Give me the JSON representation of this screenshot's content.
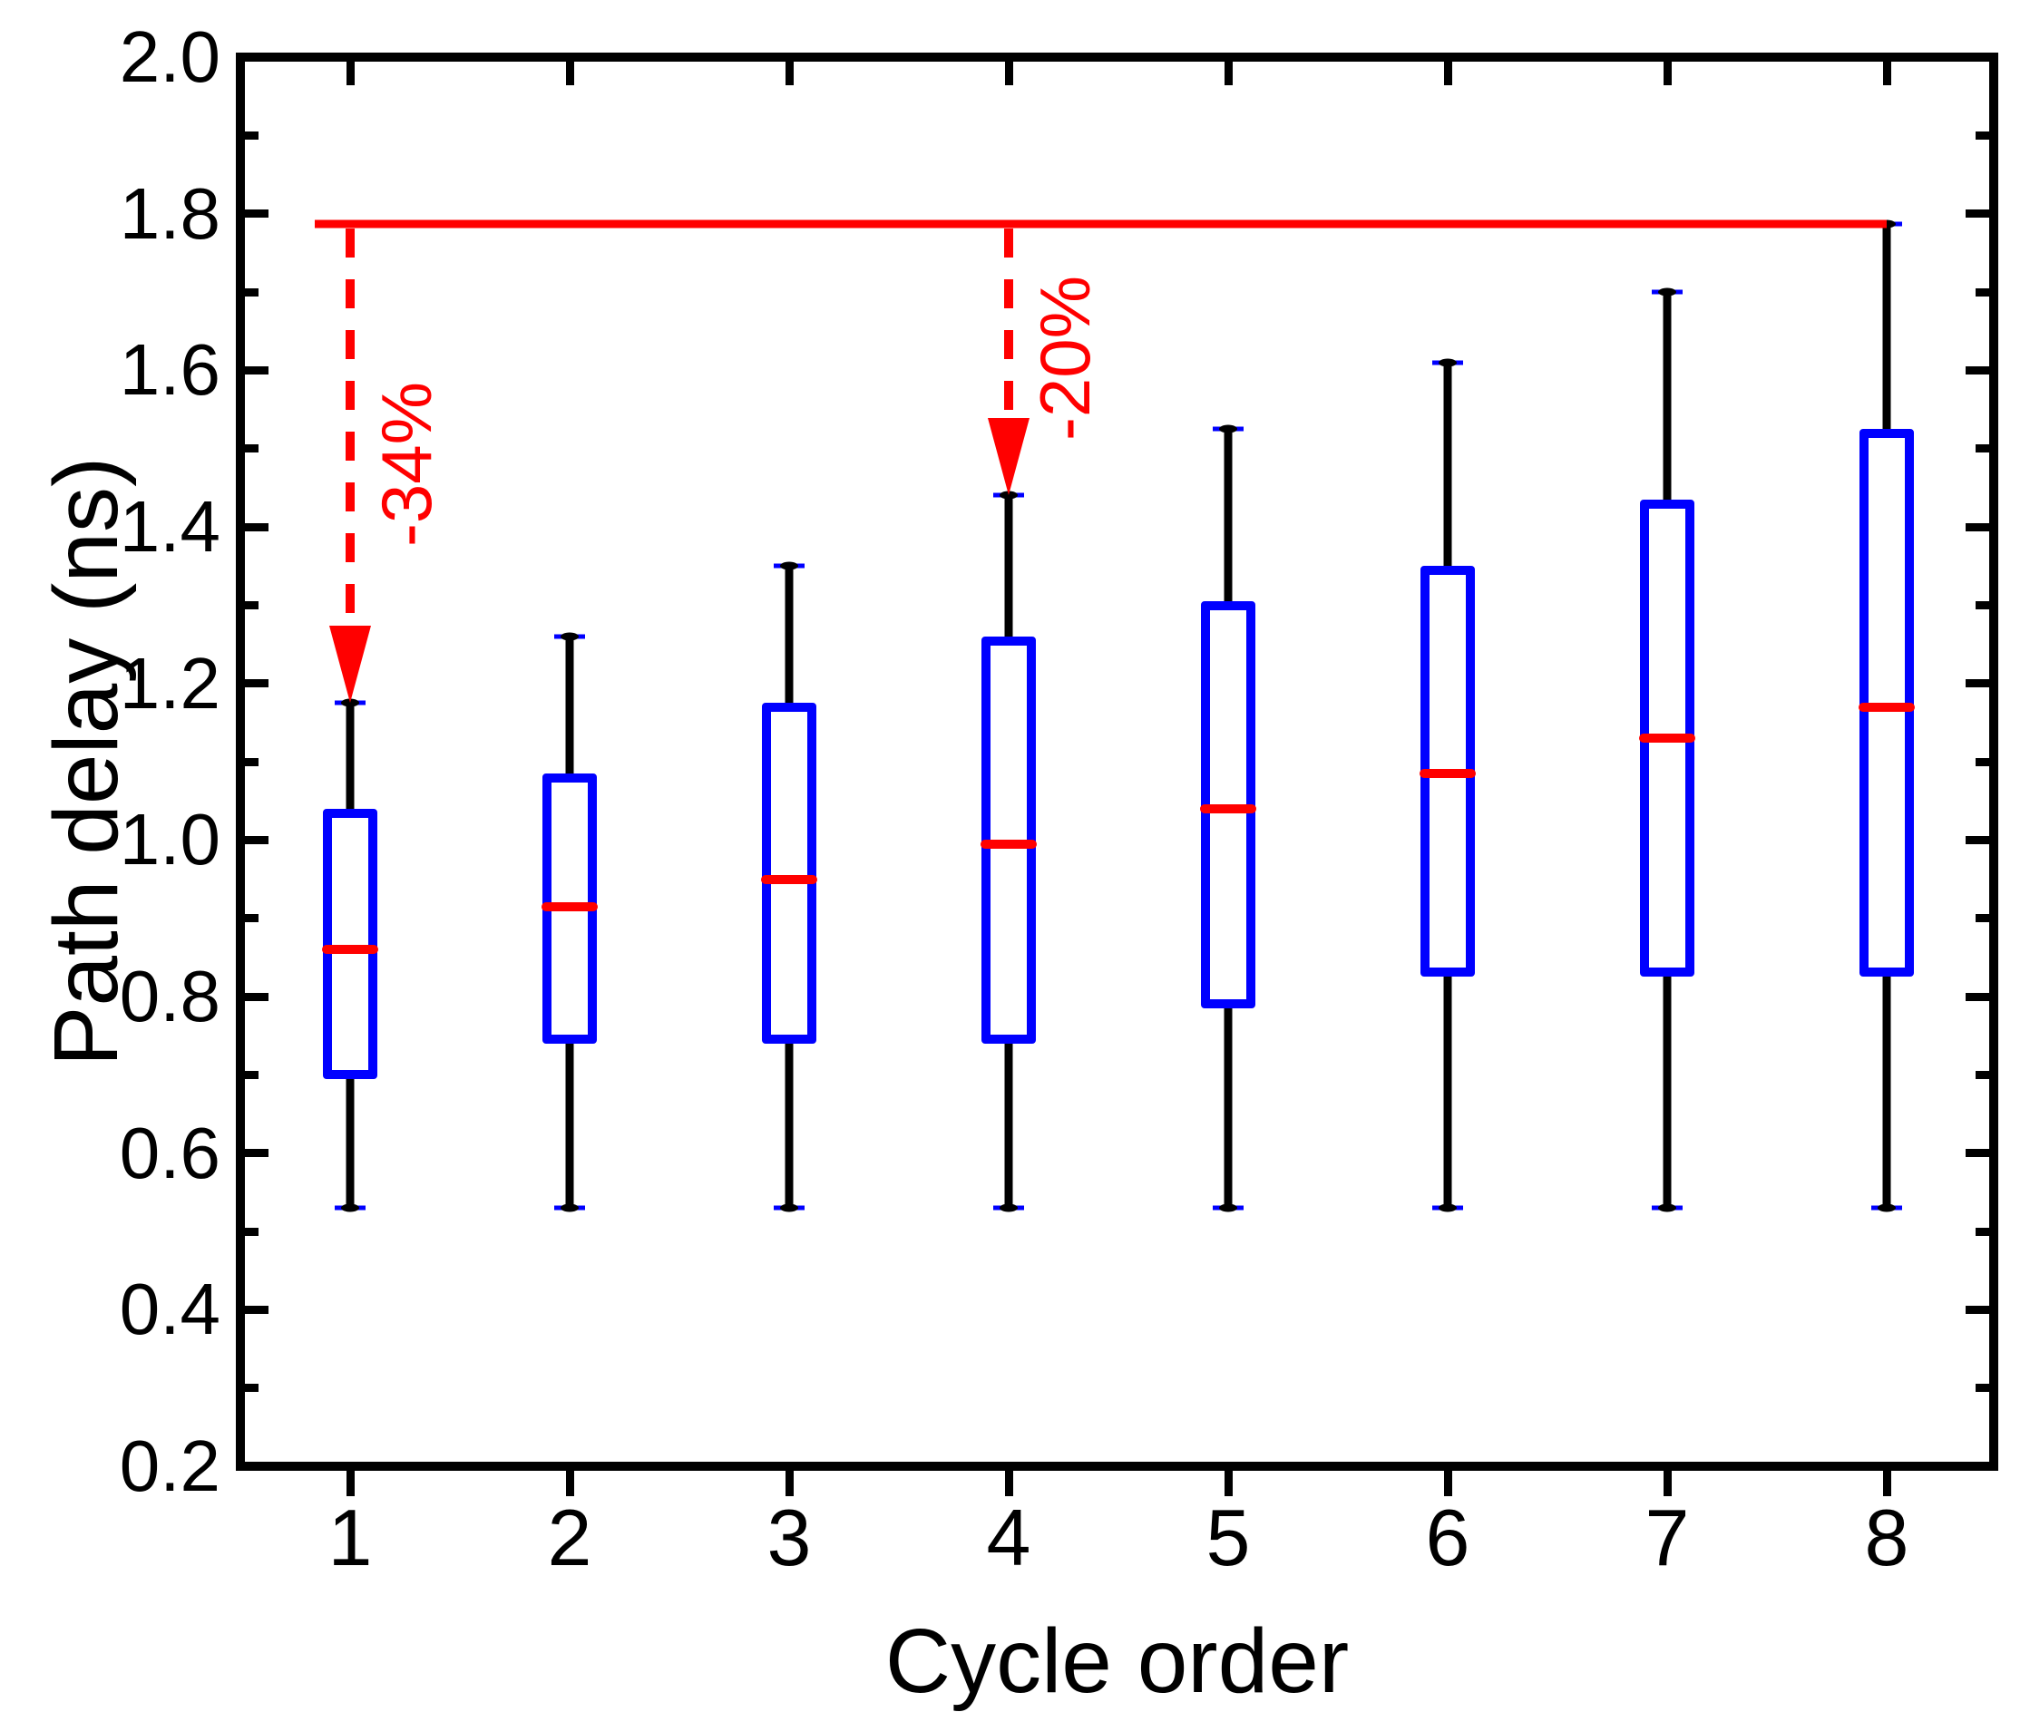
{
  "chart_data": {
    "type": "box",
    "title": "",
    "xlabel": "Cycle order",
    "ylabel": "Path delay (ns)",
    "x_categories": [
      "1",
      "2",
      "3",
      "4",
      "5",
      "6",
      "7",
      "8"
    ],
    "y_axis": {
      "min": 0.2,
      "max": 2.0,
      "major_step": 0.2,
      "minor_step": 0.1,
      "major_tick_labels": [
        "2.0",
        "1.8",
        "1.6",
        "1.4",
        "1.2",
        "1.0",
        "0.8",
        "0.6",
        "0.4",
        "0.2"
      ]
    },
    "grid": false,
    "legend": null,
    "boxes": [
      {
        "category": "1",
        "whisker_low": 0.53,
        "q1": 0.695,
        "median": 0.86,
        "q3": 1.04,
        "whisker_high": 1.175
      },
      {
        "category": "2",
        "whisker_low": 0.53,
        "q1": 0.74,
        "median": 0.915,
        "q3": 1.085,
        "whisker_high": 1.26
      },
      {
        "category": "3",
        "whisker_low": 0.53,
        "q1": 0.74,
        "median": 0.95,
        "q3": 1.175,
        "whisker_high": 1.35
      },
      {
        "category": "4",
        "whisker_low": 0.53,
        "q1": 0.74,
        "median": 0.995,
        "q3": 1.26,
        "whisker_high": 1.44
      },
      {
        "category": "5",
        "whisker_low": 0.53,
        "q1": 0.785,
        "median": 1.04,
        "q3": 1.305,
        "whisker_high": 1.525
      },
      {
        "category": "6",
        "whisker_low": 0.53,
        "q1": 0.825,
        "median": 1.085,
        "q3": 1.35,
        "whisker_high": 1.61
      },
      {
        "category": "7",
        "whisker_low": 0.53,
        "q1": 0.825,
        "median": 1.13,
        "q3": 1.435,
        "whisker_high": 1.7
      },
      {
        "category": "8",
        "whisker_low": 0.53,
        "q1": 0.825,
        "median": 1.17,
        "q3": 1.525,
        "whisker_high": 1.787
      }
    ],
    "reference_line": {
      "value": 1.787,
      "from_category": 0.84,
      "to_category": 8.0
    },
    "arrows": [
      {
        "category": 1,
        "from_value": 1.787,
        "to_value": 1.175,
        "label": "-34%",
        "label_center_value": 1.48
      },
      {
        "category": 4,
        "from_value": 1.787,
        "to_value": 1.44,
        "label": "-20%",
        "label_center_value": 1.615
      }
    ],
    "colors": {
      "box": "#0000ff",
      "median": "#ff0000",
      "whisker": "#000000",
      "annotation": "#ff0000",
      "axis": "#000000",
      "background": "#ffffff"
    }
  }
}
